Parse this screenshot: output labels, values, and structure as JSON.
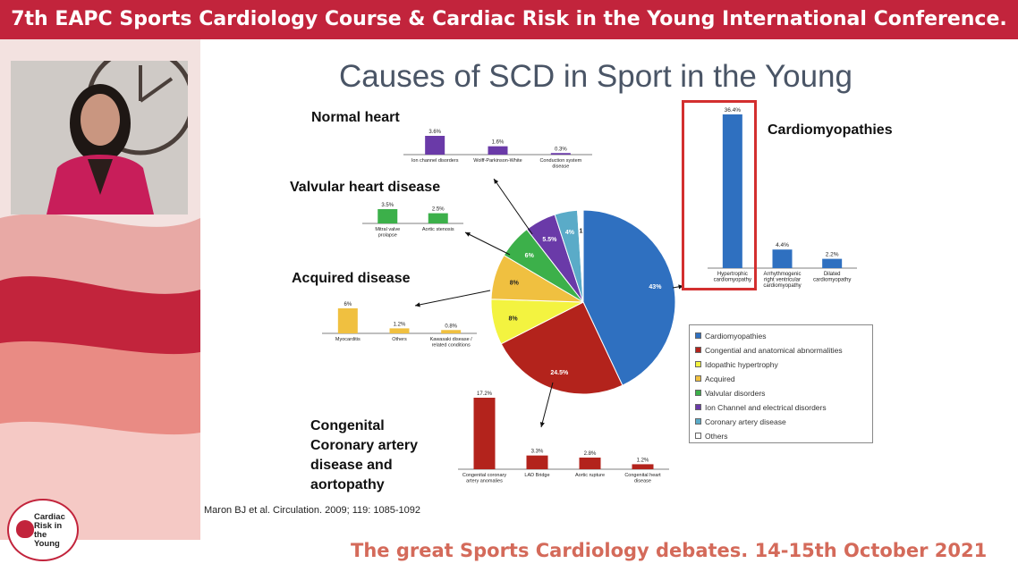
{
  "banner": {
    "title": "7th EAPC Sports Cardiology Course & Cardiac Risk in the Young International Conference."
  },
  "slide": {
    "title": "Causes of SCD in Sport in the Young",
    "categories": {
      "normal": "Normal heart",
      "valvular": "Valvular heart disease",
      "acquired": "Acquired disease",
      "congenital": [
        "Congenital",
        "Coronary artery",
        "disease and",
        "aortopathy"
      ],
      "cardiomyopathies": "Cardiomyopathies"
    },
    "citation": "Maron BJ et al. Circulation. 2009; 119: 1085-1092"
  },
  "footer": {
    "text": "The great Sports Cardiology debates. 14-15th October 2021"
  },
  "logo": {
    "line1": "Cardiac",
    "line2": "Risk in the",
    "line3": "Young"
  },
  "colors": {
    "banner": "#c2243c",
    "footer": "#d46a5a",
    "highlight": "#d32f2f"
  },
  "chart_data": [
    {
      "type": "pie",
      "slices": [
        {
          "name": "Cardiomyopathies",
          "value": 43,
          "label": "43%",
          "color": "#2f70c0"
        },
        {
          "name": "Congential and anatomical abnormalities",
          "value": 24.5,
          "label": "24.5%",
          "color": "#b3231c"
        },
        {
          "name": "Idopathic hypertrophy",
          "value": 8,
          "label": "8%",
          "color": "#f3f340"
        },
        {
          "name": "Acquired",
          "value": 8,
          "label": "8%",
          "color": "#f0c040"
        },
        {
          "name": "Valvular disorders",
          "value": 6,
          "label": "6%",
          "color": "#3cb04a"
        },
        {
          "name": "Ion Channel and electrical disorders",
          "value": 5.5,
          "label": "5.5%",
          "color": "#6a3aa8"
        },
        {
          "name": "Coronary artery disease",
          "value": 4,
          "label": "4%",
          "color": "#5aabc8"
        },
        {
          "name": "Others",
          "value": 1,
          "label": "1",
          "color": "#ffffff"
        }
      ],
      "legend": [
        "Cardiomyopathies",
        "Congential and anatomical abnormalities",
        "Idopathic hypertrophy",
        "Acquired",
        "Valvular disorders",
        "Ion Channel and electrical disorders",
        "Coronary artery disease",
        "Others"
      ]
    },
    {
      "type": "bar",
      "id": "cardiomyopathies",
      "categories": [
        [
          "Hypertrophic",
          "cardiomyopathy"
        ],
        [
          "Arrhythmogenic",
          "right ventricular",
          "cardiomyopathy"
        ],
        [
          "Dilated",
          "cardiomyopathy"
        ]
      ],
      "values": [
        36.4,
        4.4,
        2.2
      ],
      "labels": [
        "36.4%",
        "4.4%",
        "2.2%"
      ],
      "color": "#2f70c0"
    },
    {
      "type": "bar",
      "id": "normal",
      "categories": [
        [
          "Ion channel disorders"
        ],
        [
          "Wolff-Parkinson-White"
        ],
        [
          "Conduction system",
          "disease"
        ]
      ],
      "values": [
        3.6,
        1.6,
        0.3
      ],
      "labels": [
        "3.6%",
        "1.6%",
        "0.3%"
      ],
      "color": "#6a3aa8"
    },
    {
      "type": "bar",
      "id": "valvular",
      "categories": [
        [
          "Mitral valve",
          "prolapse"
        ],
        [
          "Aortic stenosis"
        ]
      ],
      "values": [
        3.5,
        2.5
      ],
      "labels": [
        "3.5%",
        "2.5%"
      ],
      "color": "#3cb04a"
    },
    {
      "type": "bar",
      "id": "acquired",
      "categories": [
        [
          "Myocarditis"
        ],
        [
          "Others"
        ],
        [
          "Kawasaki disease /",
          "related conditions"
        ]
      ],
      "values": [
        6,
        1.2,
        0.8
      ],
      "labels": [
        "6%",
        "1.2%",
        "0.8%"
      ],
      "color": "#f0c040"
    },
    {
      "type": "bar",
      "id": "congenital",
      "categories": [
        [
          "Congenital coronary",
          "artery anomalies"
        ],
        [
          "LAD Bridge"
        ],
        [
          "Aortic rupture"
        ],
        [
          "Congenital heart",
          "disease"
        ]
      ],
      "values": [
        17.2,
        3.3,
        2.8,
        1.2
      ],
      "labels": [
        "17.2%",
        "3.3%",
        "2.8%",
        "1.2%"
      ],
      "color": "#b3231c"
    }
  ]
}
